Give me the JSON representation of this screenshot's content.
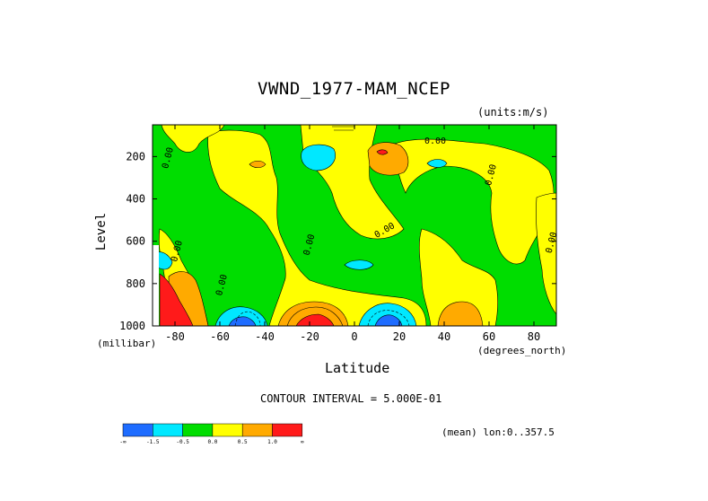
{
  "chart_data": {
    "type": "heatmap",
    "title": "VWND_1977-MAM_NCEP",
    "units_label": "(units:m/s)",
    "xlabel": "Latitude",
    "xunit_label": "(degrees_north)",
    "ylabel": "Level",
    "yunit_label": "(millibar)",
    "xlim": [
      -90,
      90
    ],
    "ylim": [
      1000,
      50
    ],
    "x_ticks": [
      -80,
      -60,
      -40,
      -20,
      0,
      20,
      40,
      60,
      80
    ],
    "y_ticks": [
      200,
      400,
      600,
      800,
      1000
    ],
    "contour_interval_label": "CONTOUR INTERVAL = 5.000E-01",
    "mean_label": "(mean) lon:0..357.5",
    "contour_labels": [
      {
        "text": "0.00",
        "lat": 36,
        "lev": 140
      },
      {
        "text": "0.00",
        "lat": -82,
        "lev": 210
      },
      {
        "text": "0.00",
        "lat": 62,
        "lev": 290
      },
      {
        "text": "0.00",
        "lat": 14,
        "lev": 560
      },
      {
        "text": "0.00",
        "lat": -19,
        "lev": 620
      },
      {
        "text": "0.00",
        "lat": 89,
        "lev": 610
      },
      {
        "text": "0.00",
        "lat": -78,
        "lev": 650
      },
      {
        "text": "0.00",
        "lat": -58,
        "lev": 810
      }
    ],
    "colorbar": {
      "colors": [
        "#1e6cff",
        "#00e8ff",
        "#00dd00",
        "#ffff00",
        "#ffaa00",
        "#ff1a1a"
      ],
      "tick_labels": [
        "-∞",
        "-1.5",
        "-0.5",
        "0.0",
        "0.5",
        "1.0",
        "∞"
      ]
    },
    "regions": [
      {
        "value_class": "green",
        "color": "#00dd00",
        "desc": "background negative/near-zero"
      },
      {
        "value_class": "yellow",
        "color": "#ffff00"
      },
      {
        "value_class": "orange",
        "color": "#ffaa00"
      },
      {
        "value_class": "red",
        "color": "#ff1a1a"
      },
      {
        "value_class": "cyan",
        "color": "#00e8ff"
      },
      {
        "value_class": "blue",
        "color": "#1e6cff"
      }
    ]
  }
}
